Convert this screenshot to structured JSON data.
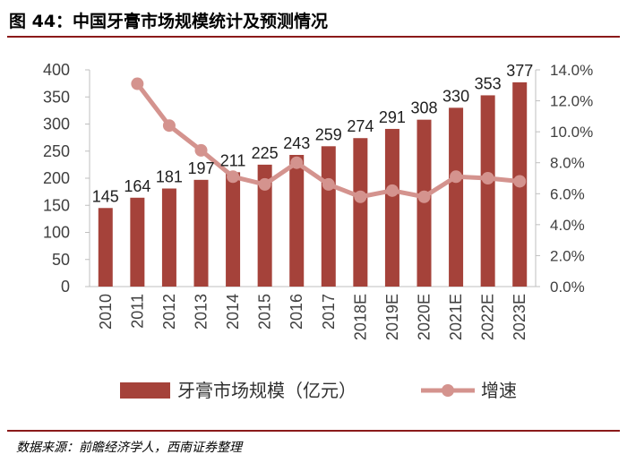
{
  "page": {
    "title": "图 44：中国牙膏市场规模统计及预测情况",
    "source": "数据来源：前瞻经济学人，西南证券整理",
    "colors": {
      "bar": "#a5423a",
      "line": "#d4938e",
      "accent_line": "#8b1a1a"
    }
  },
  "chart_data": {
    "type": "bar",
    "categories": [
      "2010",
      "2011",
      "2012",
      "2013",
      "2014",
      "2015",
      "2016",
      "2017",
      "2018E",
      "2019E",
      "2020E",
      "2021E",
      "2022E",
      "2023E"
    ],
    "series": [
      {
        "name": "牙膏市场规模（亿元）",
        "type": "bar",
        "axis": "left",
        "values": [
          145,
          164,
          181,
          197,
          211,
          225,
          243,
          259,
          274,
          291,
          308,
          330,
          353,
          377
        ],
        "show_labels": true
      },
      {
        "name": "增速",
        "type": "line",
        "axis": "right",
        "values": [
          null,
          13.1,
          10.4,
          8.8,
          7.1,
          6.6,
          8.0,
          6.6,
          5.8,
          6.2,
          5.8,
          7.1,
          7.0,
          6.8
        ]
      }
    ],
    "ylim": [
      0,
      400
    ],
    "yticks": [
      "0",
      "50",
      "100",
      "150",
      "200",
      "250",
      "300",
      "350",
      "400"
    ],
    "y2lim": [
      0,
      14
    ],
    "y2ticks": [
      "0.0%",
      "2.0%",
      "4.0%",
      "6.0%",
      "8.0%",
      "10.0%",
      "12.0%",
      "14.0%"
    ],
    "grid": false,
    "legend": "bottom"
  }
}
